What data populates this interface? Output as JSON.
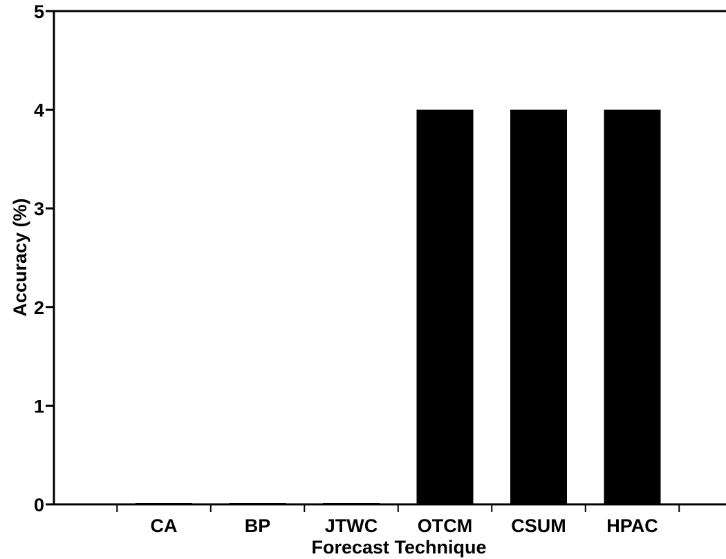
{
  "chart_data": {
    "type": "bar",
    "title": "",
    "xlabel": "Forecast Technique",
    "ylabel": "Accuracy (%)",
    "categories": [
      "CA",
      "BP",
      "JTWC",
      "OTCM",
      "CSUM",
      "HPAC"
    ],
    "values": [
      0,
      0,
      0,
      4,
      4,
      4
    ],
    "ylim": [
      0,
      5
    ],
    "yticks": [
      0,
      1,
      2,
      3,
      4,
      5
    ],
    "grid": false,
    "legend": "none",
    "colors": {
      "bar": "#000000",
      "axis": "#000000",
      "background": "#ffffff"
    }
  }
}
